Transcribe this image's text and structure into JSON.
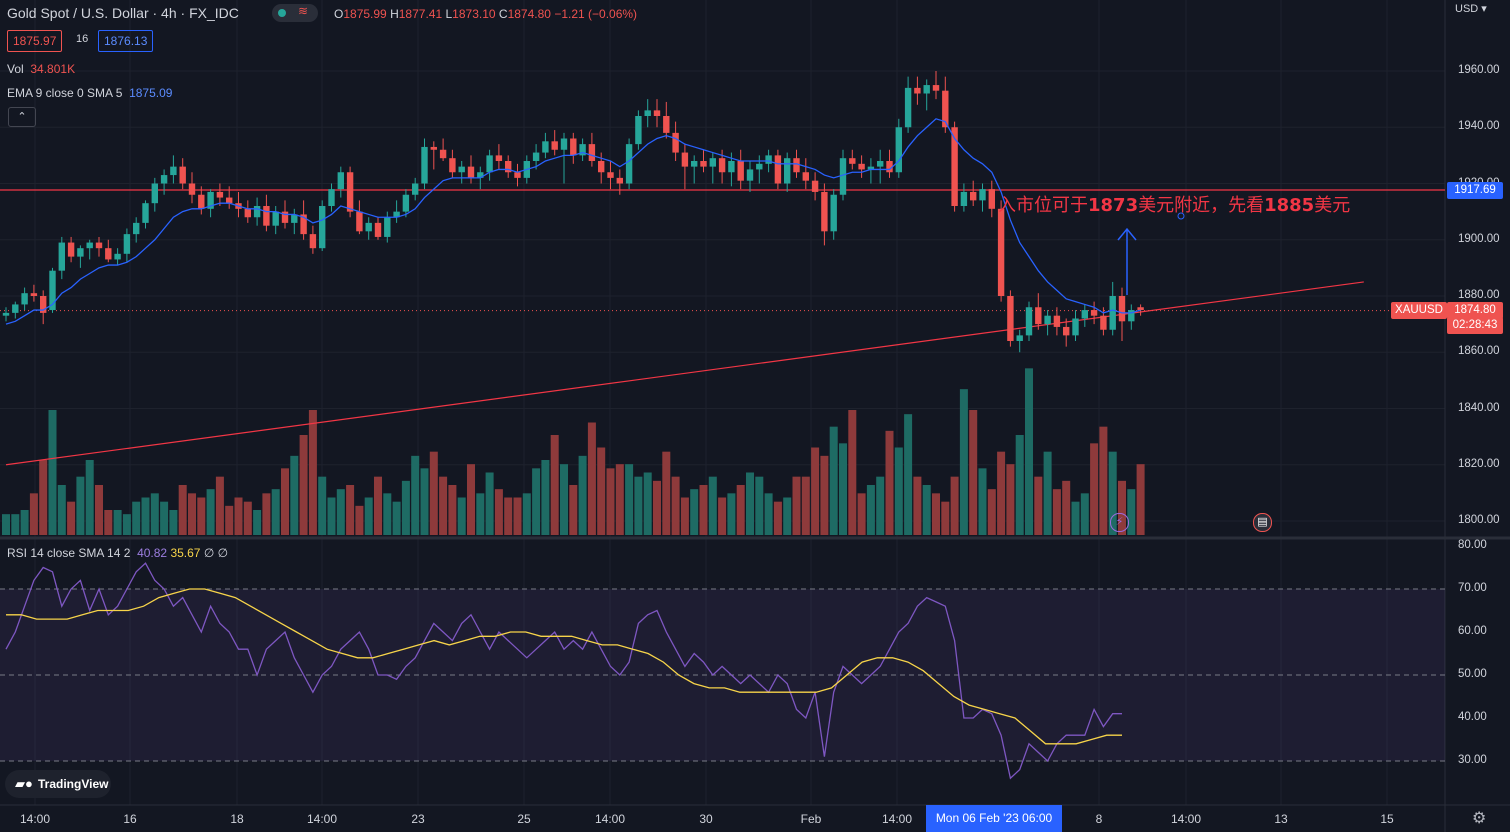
{
  "header": {
    "title": "Gold Spot / U.S. Dollar · 4h · FX_IDC",
    "ohlc": [
      {
        "k": "O",
        "v": "1875.99"
      },
      {
        "k": "H",
        "v": "1877.41"
      },
      {
        "k": "L",
        "v": "1873.10"
      },
      {
        "k": "C",
        "v": "1874.80"
      }
    ],
    "change": "−1.21 (−0.06%)",
    "bid": "1875.97",
    "spread": "16",
    "ask": "1876.13",
    "waves_icon": "waves-icon",
    "status_icon": "status-dot-icon"
  },
  "volume": {
    "label": "Vol",
    "value": "34.801K"
  },
  "ema": {
    "label": "EMA 9 close 0 SMA 5",
    "value": "1875.09"
  },
  "rsi": {
    "label": "RSI 14 close SMA 14 2",
    "value": "40.82",
    "sma_value": "35.67",
    "extra": "∅ ∅"
  },
  "currency": "USD",
  "annotation": {
    "pre": "入市位可于",
    "p1": "1873",
    "mid": "美元附近，先看",
    "p2": "1885",
    "post": "美元"
  },
  "price_axis": {
    "labels": [
      "1960.00",
      "1940.00",
      "1920.00",
      "1900.00",
      "1880.00",
      "1860.00",
      "1840.00",
      "1820.00",
      "1800.00"
    ]
  },
  "rsi_axis": {
    "labels": [
      "80.00",
      "70.00",
      "60.00",
      "50.00",
      "40.00",
      "30.00"
    ]
  },
  "resistance_tag": "1917.69",
  "symbol_tag": "XAUUSD",
  "last_price_tag": "1874.80",
  "countdown_tag": "02:28:43",
  "time_axis": {
    "labels": [
      "14:00",
      "16",
      "18",
      "14:00",
      "23",
      "25",
      "14:00",
      "30",
      "Feb",
      "14:00",
      "8",
      "14:00",
      "13",
      "15"
    ],
    "highlight": "Mon 06 Feb '23   06:00"
  },
  "branding": "TradingView",
  "icons": {
    "settings": "gear-icon",
    "logo": "tradingview-logo-icon",
    "event1": "lightning-icon",
    "event2": "us-flag-icon"
  },
  "colors": {
    "up": "#26a69a",
    "down": "#ef5350",
    "ema": "#2962ff",
    "rsi": "#7e57c2",
    "rsi_sma": "#f7d44a",
    "trend": "#f23645",
    "bg": "#131722"
  },
  "chart_data": [
    {
      "type": "candlestick",
      "title": "Gold Spot / U.S. Dollar · 4h · FX_IDC",
      "ylim": [
        1795,
        1970
      ],
      "horizontal_line": 1917.69,
      "trendline": [
        {
          "x": 0,
          "y": 1820
        },
        {
          "x": 146,
          "y": 1885
        }
      ],
      "ohlc": [
        [
          1873,
          1876,
          1871,
          1874
        ],
        [
          1874,
          1878,
          1872,
          1877
        ],
        [
          1877,
          1883,
          1875,
          1881
        ],
        [
          1881,
          1884,
          1878,
          1880
        ],
        [
          1880,
          1882,
          1870,
          1874
        ],
        [
          1875,
          1890,
          1874,
          1889
        ],
        [
          1889,
          1901,
          1886,
          1899
        ],
        [
          1899,
          1901,
          1892,
          1894
        ],
        [
          1894,
          1898,
          1890,
          1897
        ],
        [
          1897,
          1900,
          1893,
          1899
        ],
        [
          1899,
          1901,
          1894,
          1897
        ],
        [
          1897,
          1900,
          1892,
          1893
        ],
        [
          1893,
          1897,
          1891,
          1895
        ],
        [
          1895,
          1904,
          1892,
          1902
        ],
        [
          1902,
          1908,
          1899,
          1906
        ],
        [
          1906,
          1914,
          1904,
          1913
        ],
        [
          1913,
          1922,
          1910,
          1920
        ],
        [
          1920,
          1925,
          1916,
          1923
        ],
        [
          1923,
          1930,
          1920,
          1926
        ],
        [
          1926,
          1929,
          1918,
          1920
        ],
        [
          1920,
          1924,
          1913,
          1916
        ],
        [
          1916,
          1919,
          1909,
          1911
        ],
        [
          1911,
          1918,
          1908,
          1917
        ],
        [
          1917,
          1920,
          1912,
          1915
        ],
        [
          1915,
          1919,
          1911,
          1913
        ],
        [
          1913,
          1917,
          1908,
          1911
        ],
        [
          1911,
          1914,
          1906,
          1908
        ],
        [
          1908,
          1915,
          1905,
          1912
        ],
        [
          1912,
          1916,
          1903,
          1905
        ],
        [
          1905,
          1912,
          1902,
          1910
        ],
        [
          1910,
          1914,
          1904,
          1906
        ],
        [
          1906,
          1911,
          1902,
          1909
        ],
        [
          1909,
          1914,
          1900,
          1902
        ],
        [
          1902,
          1905,
          1895,
          1897
        ],
        [
          1897,
          1914,
          1896,
          1912
        ],
        [
          1912,
          1920,
          1910,
          1918
        ],
        [
          1918,
          1926,
          1915,
          1924
        ],
        [
          1924,
          1926,
          1908,
          1910
        ],
        [
          1910,
          1914,
          1902,
          1903
        ],
        [
          1903,
          1908,
          1900,
          1906
        ],
        [
          1906,
          1908,
          1900,
          1901
        ],
        [
          1901,
          1910,
          1899,
          1908
        ],
        [
          1908,
          1914,
          1906,
          1910
        ],
        [
          1910,
          1918,
          1908,
          1916
        ],
        [
          1916,
          1922,
          1914,
          1920
        ],
        [
          1920,
          1936,
          1918,
          1933
        ],
        [
          1933,
          1935,
          1925,
          1932
        ],
        [
          1932,
          1936,
          1928,
          1929
        ],
        [
          1929,
          1932,
          1922,
          1924
        ],
        [
          1924,
          1928,
          1920,
          1926
        ],
        [
          1926,
          1930,
          1920,
          1922
        ],
        [
          1922,
          1926,
          1918,
          1924
        ],
        [
          1924,
          1932,
          1921,
          1930
        ],
        [
          1930,
          1934,
          1925,
          1928
        ],
        [
          1928,
          1930,
          1922,
          1924
        ],
        [
          1924,
          1927,
          1919,
          1922
        ],
        [
          1922,
          1930,
          1920,
          1928
        ],
        [
          1928,
          1934,
          1925,
          1931
        ],
        [
          1931,
          1938,
          1929,
          1935
        ],
        [
          1935,
          1939,
          1930,
          1932
        ],
        [
          1932,
          1938,
          1920,
          1936
        ],
        [
          1936,
          1938,
          1927,
          1930
        ],
        [
          1930,
          1936,
          1928,
          1934
        ],
        [
          1934,
          1938,
          1926,
          1928
        ],
        [
          1928,
          1931,
          1920,
          1924
        ],
        [
          1924,
          1928,
          1918,
          1922
        ],
        [
          1922,
          1925,
          1916,
          1920
        ],
        [
          1920,
          1936,
          1918,
          1934
        ],
        [
          1934,
          1946,
          1932,
          1944
        ],
        [
          1944,
          1950,
          1940,
          1946
        ],
        [
          1946,
          1950,
          1940,
          1944
        ],
        [
          1944,
          1949,
          1936,
          1938
        ],
        [
          1938,
          1942,
          1928,
          1931
        ],
        [
          1931,
          1934,
          1918,
          1926
        ],
        [
          1926,
          1930,
          1920,
          1928
        ],
        [
          1928,
          1932,
          1924,
          1926
        ],
        [
          1926,
          1931,
          1920,
          1929
        ],
        [
          1929,
          1932,
          1920,
          1924
        ],
        [
          1924,
          1931,
          1919,
          1928
        ],
        [
          1928,
          1932,
          1918,
          1921
        ],
        [
          1921,
          1928,
          1917,
          1925
        ],
        [
          1925,
          1930,
          1920,
          1927
        ],
        [
          1927,
          1932,
          1924,
          1930
        ],
        [
          1930,
          1932,
          1918,
          1920
        ],
        [
          1920,
          1931,
          1917,
          1929
        ],
        [
          1929,
          1932,
          1922,
          1924
        ],
        [
          1924,
          1929,
          1918,
          1921
        ],
        [
          1921,
          1924,
          1914,
          1917
        ],
        [
          1917,
          1920,
          1898,
          1903
        ],
        [
          1903,
          1918,
          1900,
          1916
        ],
        [
          1916,
          1932,
          1914,
          1929
        ],
        [
          1929,
          1932,
          1925,
          1927
        ],
        [
          1927,
          1930,
          1922,
          1925
        ],
        [
          1925,
          1929,
          1920,
          1926
        ],
        [
          1926,
          1932,
          1920,
          1928
        ],
        [
          1928,
          1932,
          1922,
          1924
        ],
        [
          1924,
          1943,
          1922,
          1940
        ],
        [
          1940,
          1958,
          1938,
          1954
        ],
        [
          1954,
          1958,
          1948,
          1952
        ],
        [
          1952,
          1957,
          1946,
          1955
        ],
        [
          1955,
          1960,
          1950,
          1953
        ],
        [
          1953,
          1958,
          1938,
          1940
        ],
        [
          1940,
          1942,
          1910,
          1912
        ],
        [
          1912,
          1920,
          1910,
          1917
        ],
        [
          1917,
          1921,
          1912,
          1914
        ],
        [
          1914,
          1920,
          1910,
          1918
        ],
        [
          1918,
          1921,
          1908,
          1911
        ],
        [
          1911,
          1914,
          1878,
          1880
        ],
        [
          1880,
          1882,
          1862,
          1864
        ],
        [
          1864,
          1868,
          1860,
          1866
        ],
        [
          1866,
          1878,
          1864,
          1876
        ],
        [
          1876,
          1881,
          1868,
          1870
        ],
        [
          1870,
          1875,
          1866,
          1873
        ],
        [
          1873,
          1876,
          1866,
          1869
        ],
        [
          1869,
          1872,
          1862,
          1866
        ],
        [
          1866,
          1875,
          1864,
          1872
        ],
        [
          1872,
          1877,
          1869,
          1875
        ],
        [
          1875,
          1878,
          1870,
          1873
        ],
        [
          1873,
          1876,
          1866,
          1868
        ],
        [
          1868,
          1885,
          1866,
          1880
        ],
        [
          1880,
          1883,
          1864,
          1871
        ],
        [
          1871,
          1877,
          1868,
          1875
        ],
        [
          1876,
          1877,
          1873,
          1875
        ]
      ],
      "ema_values": [
        1870,
        1871,
        1873,
        1875,
        1875,
        1877,
        1881,
        1883,
        1886,
        1888,
        1890,
        1891,
        1891,
        1892,
        1894,
        1897,
        1900,
        1904,
        1908,
        1910,
        1911,
        1911,
        1912,
        1913,
        1913,
        1912,
        1911,
        1911,
        1910,
        1910,
        1909,
        1909,
        1908,
        1906,
        1907,
        1909,
        1912,
        1911,
        1910,
        1909,
        1908,
        1908,
        1908,
        1909,
        1911,
        1915,
        1918,
        1921,
        1922,
        1922,
        1922,
        1922,
        1924,
        1925,
        1925,
        1924,
        1925,
        1926,
        1928,
        1929,
        1930,
        1930,
        1931,
        1930,
        1929,
        1928,
        1926,
        1928,
        1931,
        1934,
        1936,
        1937,
        1936,
        1934,
        1933,
        1932,
        1931,
        1930,
        1929,
        1928,
        1928,
        1928,
        1928,
        1927,
        1927,
        1927,
        1926,
        1925,
        1923,
        1922,
        1923,
        1924,
        1924,
        1925,
        1925,
        1925,
        1928,
        1933,
        1937,
        1940,
        1943,
        1942,
        1936,
        1932,
        1929,
        1927,
        1924,
        1917,
        1907,
        1899,
        1894,
        1889,
        1885,
        1882,
        1879,
        1878,
        1877,
        1876,
        1874,
        1875,
        1874,
        1874,
        1875
      ]
    },
    {
      "type": "bar",
      "title": "Vol",
      "values": [
        5,
        5,
        6,
        10,
        18,
        30,
        12,
        8,
        14,
        18,
        12,
        6,
        6,
        5,
        8,
        9,
        10,
        8,
        6,
        12,
        10,
        9,
        11,
        14,
        7,
        9,
        8,
        6,
        10,
        11,
        16,
        19,
        24,
        30,
        14,
        9,
        11,
        12,
        7,
        9,
        14,
        10,
        8,
        13,
        19,
        16,
        20,
        14,
        12,
        9,
        17,
        10,
        15,
        11,
        9,
        9,
        10,
        16,
        18,
        24,
        17,
        12,
        19,
        27,
        21,
        16,
        17,
        17,
        14,
        15,
        13,
        20,
        14,
        9,
        11,
        12,
        14,
        9,
        10,
        12,
        15,
        14,
        10,
        8,
        9,
        14,
        14,
        21,
        19,
        26,
        22,
        30,
        10,
        12,
        14,
        25,
        21,
        29,
        14,
        12,
        10,
        8,
        14,
        35,
        30,
        16,
        11,
        20,
        17,
        24,
        40,
        14,
        20,
        11,
        13,
        8,
        10,
        22,
        26,
        20,
        13,
        11,
        17
      ],
      "ylim": [
        0,
        48
      ]
    },
    {
      "type": "line",
      "title": "RSI 14 close SMA 14 2",
      "ylim": [
        25,
        81
      ],
      "bands": [
        30,
        50,
        70
      ],
      "series": [
        {
          "name": "RSI",
          "values": [
            56,
            60,
            66,
            72,
            75,
            74,
            66,
            70,
            72,
            65,
            70,
            64,
            66,
            70,
            74,
            76,
            72,
            70,
            66,
            68,
            64,
            60,
            66,
            62,
            60,
            56,
            56,
            50,
            56,
            58,
            60,
            54,
            50,
            46,
            50,
            52,
            56,
            58,
            60,
            56,
            50,
            50,
            49,
            52,
            54,
            58,
            62,
            60,
            58,
            62,
            64,
            60,
            56,
            60,
            58,
            56,
            54,
            56,
            58,
            60,
            56,
            58,
            56,
            60,
            56,
            52,
            50,
            53,
            62,
            64,
            65,
            60,
            56,
            52,
            55,
            53,
            50,
            52,
            50,
            48,
            50,
            48,
            46,
            50,
            48,
            42,
            40,
            46,
            31,
            46,
            52,
            50,
            48,
            50,
            52,
            56,
            60,
            62,
            66,
            68,
            67,
            66,
            58,
            40,
            40,
            42,
            41,
            36,
            26,
            28,
            34,
            32,
            30,
            34,
            36,
            36,
            36,
            42,
            38,
            41,
            41
          ],
          "y_start": 0
        },
        {
          "name": "SMA",
          "values": [
            64,
            64,
            63,
            63,
            63,
            64,
            65,
            65,
            65,
            66,
            68,
            69,
            70,
            70,
            69,
            68,
            66,
            64,
            62,
            60,
            58,
            56,
            55,
            54,
            54,
            55,
            56,
            57,
            58,
            57,
            58,
            59,
            59,
            60,
            60,
            59,
            59,
            59,
            58,
            57,
            57,
            56,
            55,
            53,
            50,
            48,
            47,
            47,
            46,
            46,
            46,
            46,
            46,
            46,
            47,
            50,
            53,
            54,
            54,
            53,
            51,
            48,
            45,
            43,
            42,
            41,
            40,
            37,
            34,
            34,
            34,
            35,
            36,
            36
          ],
          "y_start": 0
        }
      ]
    }
  ]
}
